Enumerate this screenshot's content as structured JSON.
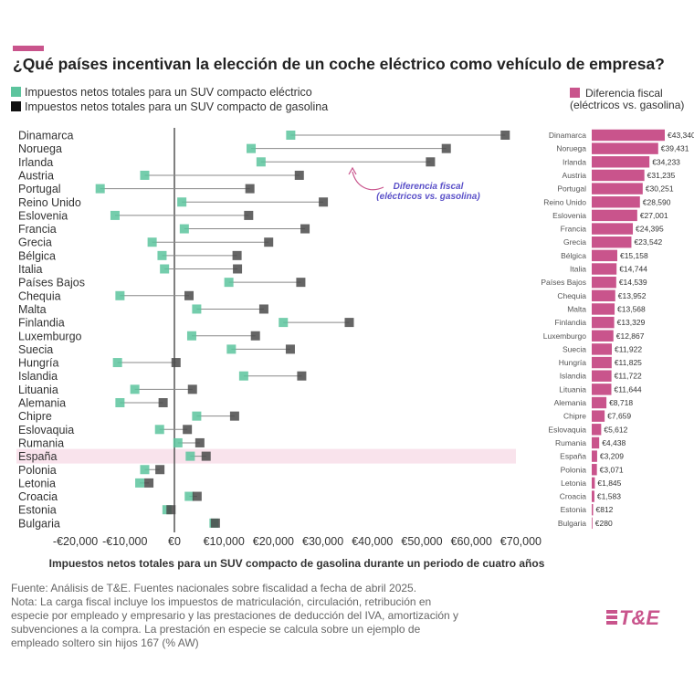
{
  "title": "¿Qué países incentivan la elección de un coche eléctrico como vehículo de empresa?",
  "legend": {
    "electric": "Impuestos netos totales para un SUV compacto eléctrico",
    "petrol": "Impuestos netos totales para un SUV compacto de gasolina",
    "diff_line1": "Diferencia fiscal",
    "diff_line2": "(eléctricos vs. gasolina)"
  },
  "annotation": {
    "line1": "Diferencia fiscal",
    "line2": "(eléctricos vs. gasolina)"
  },
  "footer": {
    "source": "Fuente: Análisis de T&E. Fuentes nacionales sobre fiscalidad a fecha de abril 2025.",
    "note": "Nota: La carga fiscal incluye los impuestos de matriculación, circulación, retribución en especie por empleado y empresario y las prestaciones de deducción del IVA, amortización y subvenciones a la compra. La prestación en especie se calcula sobre un ejemplo de empleado soltero sin hijos 167 (% AW)"
  },
  "logo": {
    "text": "T&E"
  },
  "colors": {
    "electric": "#5cc49d",
    "petrol": "#4a4a4a",
    "diff": "#c9548c",
    "highlight": "#f9e3ec",
    "axis": "#555555",
    "connector": "#888888",
    "annotation_text": "#5a50c8"
  },
  "chart_data": [
    {
      "type": "dumbbell",
      "xlabel": "Impuestos netos totales para un SUV compacto de gasolina durante un periodo de cuatro años",
      "xlim": [
        -23000,
        71000
      ],
      "xticks": [
        -20000,
        -10000,
        0,
        10000,
        20000,
        30000,
        40000,
        50000,
        60000,
        70000
      ],
      "xtick_labels": [
        "-€20,000",
        "-€10,000",
        "€0",
        "€10,000",
        "€20,000",
        "€30,000",
        "€40,000",
        "€50,000",
        "€60,000",
        "€70,000"
      ],
      "highlight_category": "España",
      "categories": [
        "Dinamarca",
        "Noruega",
        "Irlanda",
        "Austria",
        "Portugal",
        "Reino Unido",
        "Eslovenia",
        "Francia",
        "Grecia",
        "Bélgica",
        "Italia",
        "Países Bajos",
        "Chequia",
        "Malta",
        "Finlandia",
        "Luxemburgo",
        "Suecia",
        "Hungría",
        "Islandia",
        "Lituania",
        "Alemania",
        "Chipre",
        "Eslovaquia",
        "Rumania",
        "España",
        "Polonia",
        "Letonia",
        "Croacia",
        "Estonia",
        "Bulgaria"
      ],
      "series": [
        {
          "name": "Impuestos netos totales para un SUV compacto eléctrico",
          "values": [
            23500,
            15500,
            17500,
            -6000,
            -15000,
            1500,
            -12000,
            2000,
            -4500,
            -2500,
            -2000,
            11000,
            -11000,
            4500,
            22000,
            3500,
            11500,
            -11500,
            14000,
            -8000,
            -11000,
            4500,
            -3000,
            700,
            3200,
            -6000,
            -7000,
            3000,
            -1500,
            8000
          ]
        },
        {
          "name": "Impuestos netos totales para un SUV compacto de gasolina",
          "values": [
            66840,
            54931,
            51733,
            25235,
            15251,
            30090,
            15001,
            26395,
            19042,
            12658,
            12744,
            25539,
            2952,
            18068,
            35329,
            16367,
            23422,
            325,
            25722,
            3644,
            -2282,
            12159,
            2612,
            5138,
            6409,
            -2929,
            -5155,
            4583,
            -688,
            8280
          ]
        }
      ]
    },
    {
      "type": "bar",
      "title": "Diferencia fiscal (eléctricos vs. gasolina)",
      "categories": [
        "Dinamarca",
        "Noruega",
        "Irlanda",
        "Austria",
        "Portugal",
        "Reino Unido",
        "Eslovenia",
        "Francia",
        "Grecia",
        "Bélgica",
        "Italia",
        "Países Bajos",
        "Chequia",
        "Malta",
        "Finlandia",
        "Luxemburgo",
        "Suecia",
        "Hungría",
        "Islandia",
        "Lituania",
        "Alemania",
        "Chipre",
        "Eslovaquia",
        "Rumania",
        "España",
        "Polonia",
        "Letonia",
        "Croacia",
        "Estonia",
        "Bulgaria"
      ],
      "values": [
        43340,
        39431,
        34233,
        31235,
        30251,
        28590,
        27001,
        24395,
        23542,
        15158,
        14744,
        14539,
        13952,
        13568,
        13329,
        12867,
        11922,
        11825,
        11722,
        11644,
        8718,
        7659,
        5612,
        4438,
        3209,
        3071,
        1845,
        1583,
        812,
        280
      ],
      "value_labels": [
        "€43,340",
        "€39,431",
        "€34,233",
        "€31,235",
        "€30,251",
        "€28,590",
        "€27,001",
        "€24,395",
        "€23,542",
        "€15,158",
        "€14,744",
        "€14,539",
        "€13,952",
        "€13,568",
        "€13,329",
        "€12,867",
        "€11,922",
        "€11,825",
        "€11,722",
        "€11,644",
        "€8,718",
        "€7,659",
        "€5,612",
        "€4,438",
        "€3,209",
        "€3,071",
        "€1,845",
        "€1,583",
        "€812",
        "€280"
      ],
      "xlim": [
        0,
        43340
      ]
    }
  ]
}
